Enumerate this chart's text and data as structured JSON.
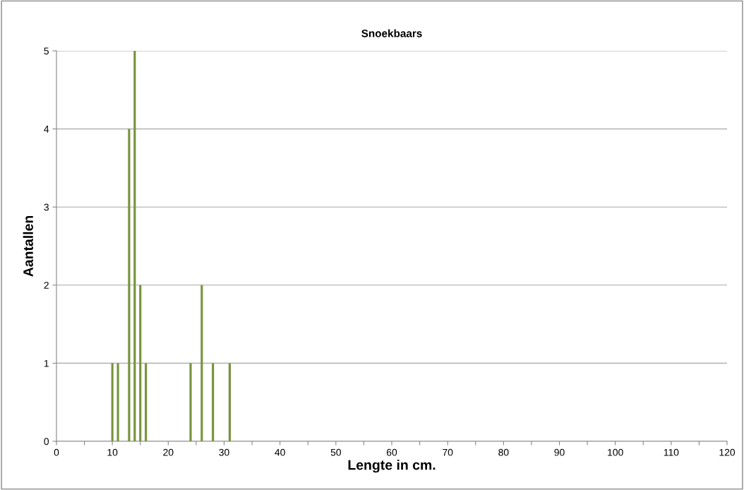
{
  "chart_data": {
    "type": "bar",
    "title": "Snoekbaars",
    "xlabel": "Lengte in cm.",
    "ylabel": "Aantallen",
    "x": [
      10,
      11,
      13,
      14,
      15,
      16,
      24,
      26,
      28,
      31
    ],
    "values": [
      1,
      1,
      4,
      5,
      2,
      1,
      1,
      2,
      1,
      1
    ],
    "color": "#77933c",
    "xlim": [
      0,
      120
    ],
    "xticks": [
      0,
      {
        "value": 5,
        "label": null
      },
      10,
      {
        "value": 15,
        "label": null
      },
      20,
      {
        "value": 25,
        "label": null
      },
      30,
      {
        "value": 35,
        "label": null
      },
      40,
      {
        "value": 45,
        "label": null
      },
      50,
      {
        "value": 55,
        "label": null
      },
      60,
      {
        "value": 65,
        "label": null
      },
      70,
      {
        "value": 75,
        "label": null
      },
      80,
      {
        "value": 85,
        "label": null
      },
      90,
      {
        "value": 95,
        "label": null
      },
      100,
      {
        "value": 105,
        "label": null
      },
      110,
      {
        "value": 115,
        "label": null
      },
      120
    ],
    "ylim": [
      0,
      5
    ],
    "yticks": [
      0,
      1,
      2,
      3,
      4,
      5
    ],
    "grid": "y",
    "legend": false
  }
}
